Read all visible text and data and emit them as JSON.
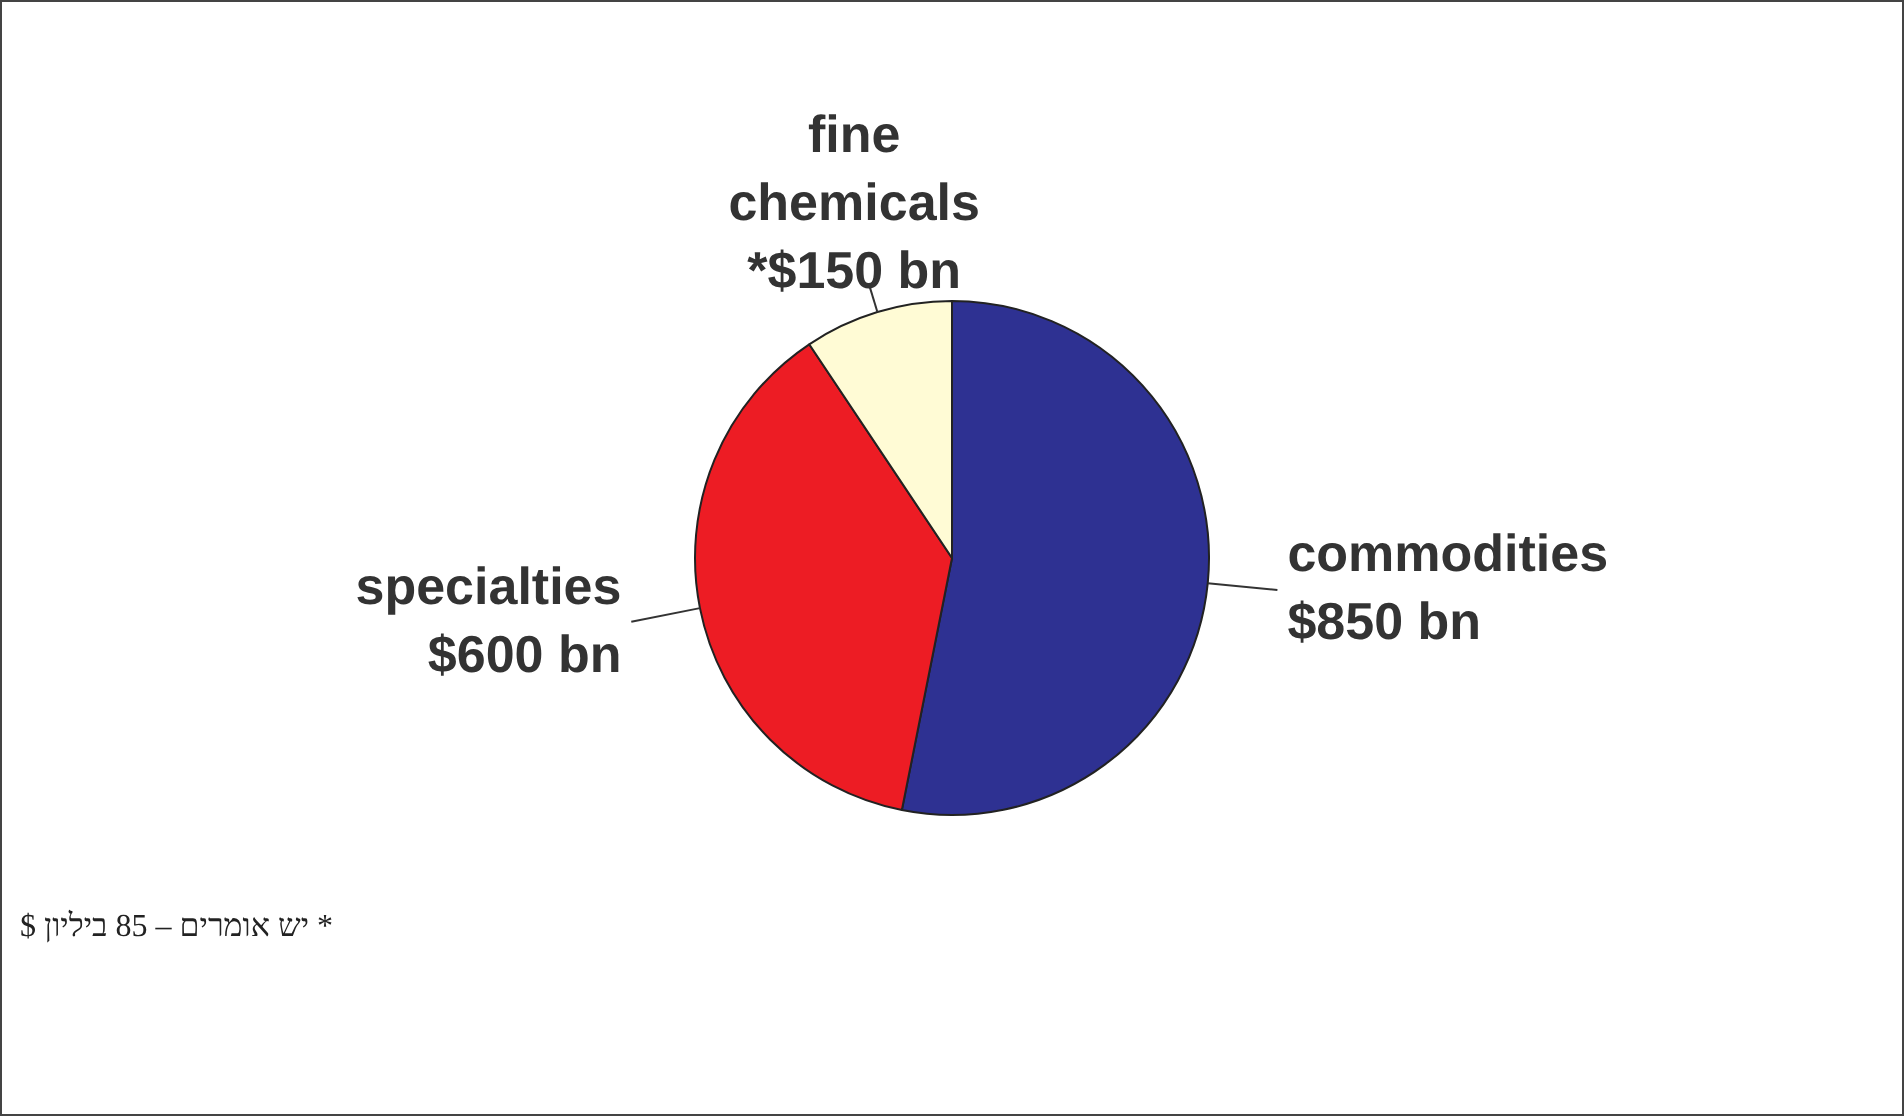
{
  "chart_data": {
    "type": "pie",
    "categories": [
      "commodities",
      "specialties",
      "fine chemicals"
    ],
    "values": [
      850,
      600,
      150
    ],
    "value_labels": [
      "$850 bn",
      "$600 bn",
      "*$150 bn"
    ],
    "colors": [
      "#2e3192",
      "#ed1c24",
      "#fffbd5"
    ],
    "legend": false,
    "annotations": [
      "* יש אומרים – 85 ביליון $"
    ]
  }
}
